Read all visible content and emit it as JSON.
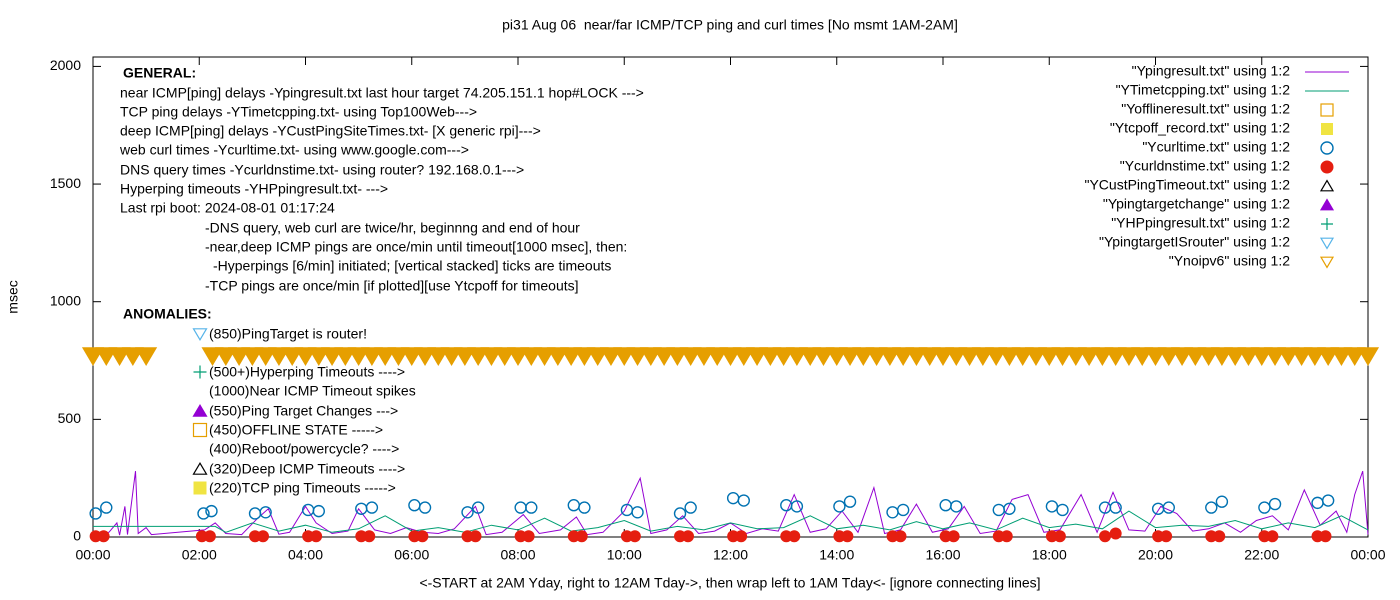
{
  "chart_data": {
    "type": "line",
    "title": "pi31 Aug 06  near/far ICMP/TCP ping and curl times [No msmt 1AM-2AM]",
    "xlabel": "<-START at 2AM Yday, right to 12AM Tday->, then wrap left to 1AM Tday<- [ignore connecting lines]",
    "ylabel": "msec",
    "xlim": [
      0,
      24
    ],
    "ylim": [
      0,
      2040
    ],
    "xticks": [
      {
        "value": 0,
        "label": "00:00"
      },
      {
        "value": 2,
        "label": "02:00"
      },
      {
        "value": 4,
        "label": "04:00"
      },
      {
        "value": 6,
        "label": "06:00"
      },
      {
        "value": 8,
        "label": "08:00"
      },
      {
        "value": 10,
        "label": "10:00"
      },
      {
        "value": 12,
        "label": "12:00"
      },
      {
        "value": 14,
        "label": "14:00"
      },
      {
        "value": 16,
        "label": "16:00"
      },
      {
        "value": 18,
        "label": "18:00"
      },
      {
        "value": 20,
        "label": "20:00"
      },
      {
        "value": 22,
        "label": "22:00"
      },
      {
        "value": 24,
        "label": "00:00"
      }
    ],
    "yticks": [
      0,
      500,
      1000,
      1500,
      2000
    ],
    "legend_position": "top-right",
    "general_title": "GENERAL:",
    "general_notes": [
      "near ICMP[ping] delays -Ypingresult.txt last hour target 74.205.151.1 hop#LOCK --->",
      "TCP ping delays -YTimetcpping.txt- using Top100Web--->",
      "deep ICMP[ping] delays -YCustPingSiteTimes.txt- [X generic rpi]--->",
      "web curl times -Ycurltime.txt- using www.google.com--->",
      "DNS query times -Ycurldnstime.txt- using router? 192.168.0.1--->",
      "Hyperping timeouts -YHPpingresult.txt- --->",
      "Last rpi boot: 2024-08-01 01:17:24",
      "-DNS query, web curl are twice/hr, beginnng and end of hour",
      "-near,deep ICMP pings are once/min until timeout[1000 msec], then:",
      "-Hyperpings [6/min] initiated; [vertical stacked] ticks are timeouts",
      "-TCP pings are once/min [if plotted][use Ytcpoff for timeouts]"
    ],
    "anomalies_title": "ANOMALIES:",
    "anomaly_notes": [
      {
        "text": "(850)PingTarget is router!",
        "marker": "triangle-down-open",
        "color": "#56b4e9"
      },
      {
        "text": "(500+)Hyperping Timeouts ---->",
        "marker": "plus",
        "color": "#009e73"
      },
      {
        "text": "(1000)Near ICMP Timeout spikes"
      },
      {
        "text": "(550)Ping Target Changes --->",
        "marker": "triangle-filled",
        "color": "#9400d3"
      },
      {
        "text": "(450)OFFLINE STATE ----->",
        "marker": "square-open",
        "color": "#e69f00"
      },
      {
        "text": "(400)Reboot/powercycle? ---->"
      },
      {
        "text": "(320)Deep ICMP Timeouts ---->",
        "marker": "triangle-open",
        "color": "#000000"
      },
      {
        "text": "(220)TCP ping Timeouts ----->",
        "marker": "square-filled",
        "color": "#f0e442"
      }
    ],
    "series": [
      {
        "name": "\"Ypingresult.txt\" using 1:2",
        "marker": "line",
        "color": "#9400d3",
        "x": [
          0,
          0.3,
          0.45,
          0.5,
          0.6,
          0.65,
          0.8,
          0.85,
          1.0,
          1.1,
          2.1,
          2.3,
          2.5,
          2.8,
          3.1,
          3.3,
          3.5,
          3.7,
          4.0,
          4.2,
          4.5,
          4.8,
          5.0,
          5.3,
          5.6,
          5.9,
          6.2,
          6.5,
          6.8,
          7.2,
          7.4,
          7.7,
          8.1,
          8.4,
          8.8,
          9.1,
          9.3,
          9.6,
          10.0,
          10.3,
          10.5,
          10.8,
          11.1,
          11.4,
          11.7,
          12.0,
          12.3,
          12.6,
          12.9,
          13.2,
          13.5,
          13.8,
          14.1,
          14.4,
          14.7,
          14.9,
          15.2,
          15.5,
          15.8,
          16.1,
          16.4,
          16.7,
          17.0,
          17.3,
          17.6,
          17.9,
          18.2,
          18.6,
          18.9,
          19.2,
          19.5,
          19.8,
          20.1,
          20.4,
          20.7,
          21.0,
          21.3,
          21.6,
          21.9,
          22.2,
          22.5,
          22.8,
          23.1,
          23.4,
          23.6,
          23.75,
          23.9,
          24.0
        ],
        "values": [
          10,
          20,
          60,
          8,
          130,
          10,
          280,
          15,
          40,
          10,
          30,
          60,
          15,
          10,
          80,
          120,
          12,
          20,
          130,
          60,
          15,
          25,
          120,
          30,
          15,
          40,
          20,
          15,
          35,
          130,
          10,
          20,
          95,
          15,
          30,
          85,
          10,
          20,
          110,
          250,
          15,
          30,
          90,
          15,
          25,
          60,
          15,
          35,
          25,
          180,
          20,
          35,
          110,
          20,
          210,
          15,
          30,
          140,
          20,
          35,
          130,
          15,
          25,
          160,
          180,
          20,
          30,
          180,
          20,
          190,
          30,
          25,
          130,
          100,
          25,
          35,
          60,
          20,
          70,
          90,
          30,
          200,
          50,
          110,
          20,
          180,
          280,
          10
        ]
      },
      {
        "name": "\"YTimetcpping.txt\" using 1:2",
        "marker": "line",
        "color": "#009e73",
        "x": [
          0,
          2.3,
          2.5,
          3,
          3.5,
          4,
          4.5,
          5,
          5.5,
          6,
          6.5,
          7,
          7.5,
          8,
          8.5,
          9,
          9.5,
          10,
          10.5,
          11,
          11.5,
          12,
          12.5,
          13,
          13.5,
          14,
          14.5,
          15,
          15.5,
          16,
          16.5,
          17,
          17.5,
          18,
          18.5,
          19,
          19.5,
          20,
          20.5,
          21,
          21.5,
          22,
          22.5,
          23,
          23.5,
          24
        ],
        "values": [
          45,
          45,
          20,
          60,
          25,
          50,
          20,
          35,
          90,
          25,
          40,
          20,
          50,
          30,
          80,
          25,
          40,
          70,
          25,
          45,
          30,
          60,
          35,
          40,
          90,
          35,
          50,
          30,
          65,
          35,
          60,
          30,
          80,
          40,
          55,
          35,
          110,
          40,
          50,
          45,
          70,
          35,
          60,
          40,
          90,
          30
        ]
      },
      {
        "name": "\"Yofflineresult.txt\" using 1:2",
        "marker": "square-open",
        "color": "#e69f00",
        "x": [],
        "values": []
      },
      {
        "name": "\"Ytcpoff_record.txt\" using 1:2",
        "marker": "square-filled",
        "color": "#f0e442",
        "x": [],
        "values": []
      },
      {
        "name": "\"Ycurltime.txt\" using 1:2",
        "marker": "circle-open",
        "color": "#0072b2",
        "x": [
          0.05,
          0.25,
          2.08,
          2.23,
          3.05,
          3.25,
          4.05,
          4.25,
          5.05,
          5.25,
          6.05,
          6.25,
          7.05,
          7.25,
          8.05,
          8.25,
          9.05,
          9.25,
          10.05,
          10.25,
          11.05,
          11.25,
          12.05,
          12.25,
          13.05,
          13.25,
          14.05,
          14.25,
          15.05,
          15.25,
          16.05,
          16.25,
          17.05,
          17.25,
          18.05,
          18.25,
          19.05,
          19.25,
          20.05,
          20.25,
          21.05,
          21.25,
          22.05,
          22.25,
          23.05,
          23.25
        ],
        "values": [
          100,
          125,
          100,
          110,
          100,
          105,
          115,
          110,
          120,
          125,
          135,
          125,
          105,
          125,
          125,
          125,
          135,
          125,
          115,
          105,
          100,
          125,
          165,
          155,
          135,
          130,
          130,
          150,
          105,
          115,
          135,
          130,
          115,
          120,
          130,
          115,
          125,
          125,
          120,
          125,
          125,
          150,
          125,
          140,
          145,
          155
        ]
      },
      {
        "name": "\"Ycurldnstime.txt\" using 1:2",
        "marker": "circle-filled",
        "color": "#e51e10",
        "x": [
          0.05,
          0.2,
          2.05,
          2.2,
          3.05,
          3.2,
          4.05,
          4.2,
          5.05,
          5.2,
          6.05,
          6.2,
          7.05,
          7.2,
          8.05,
          8.2,
          9.05,
          9.2,
          10.05,
          10.2,
          11.05,
          11.2,
          12.05,
          12.2,
          13.05,
          13.2,
          14.05,
          14.2,
          15.05,
          15.2,
          16.05,
          16.2,
          17.05,
          17.2,
          18.05,
          18.2,
          19.05,
          19.25,
          20.05,
          20.2,
          21.05,
          21.2,
          22.05,
          22.2,
          23.05,
          23.2
        ],
        "values": [
          3,
          3,
          3,
          3,
          3,
          3,
          3,
          3,
          3,
          3,
          3,
          3,
          3,
          3,
          3,
          3,
          3,
          3,
          3,
          3,
          3,
          3,
          3,
          3,
          3,
          3,
          3,
          3,
          3,
          3,
          3,
          3,
          3,
          3,
          3,
          3,
          3,
          15,
          3,
          3,
          3,
          3,
          3,
          3,
          3,
          3
        ]
      },
      {
        "name": "\"YCustPingTimeout.txt\" using 1:2",
        "marker": "triangle-open",
        "color": "#000000",
        "x": [],
        "values": []
      },
      {
        "name": "\"Ypingtargetchange\" using 1:2",
        "marker": "triangle-filled",
        "color": "#9400d3",
        "x": [],
        "values": []
      },
      {
        "name": "\"YHPpingresult.txt\" using 1:2",
        "marker": "plus",
        "color": "#009e73",
        "x": [],
        "values": []
      },
      {
        "name": "\"YpingtargetISrouter\" using 1:2",
        "marker": "triangle-down-open",
        "color": "#56b4e9",
        "x": [],
        "values": []
      },
      {
        "name": "\"Ynoipv6\" using 1:2",
        "marker": "triangle-down-open",
        "color": "#e69f00",
        "x": [
          0,
          0.25,
          0.5,
          0.75,
          1.0,
          2.25,
          2.5,
          2.75,
          3,
          3.25,
          3.5,
          3.75,
          4,
          4.25,
          4.5,
          4.75,
          5,
          5.25,
          5.5,
          5.75,
          6,
          6.25,
          6.5,
          6.75,
          7,
          7.25,
          7.5,
          7.75,
          8,
          8.25,
          8.5,
          8.75,
          9,
          9.25,
          9.5,
          9.75,
          10,
          10.25,
          10.5,
          10.75,
          11,
          11.25,
          11.5,
          11.75,
          12,
          12.25,
          12.5,
          12.75,
          13,
          13.25,
          13.5,
          13.75,
          14,
          14.25,
          14.5,
          14.75,
          15,
          15.25,
          15.5,
          15.75,
          16,
          16.25,
          16.5,
          16.75,
          17,
          17.25,
          17.5,
          17.75,
          18,
          18.25,
          18.5,
          18.75,
          19,
          19.25,
          19.5,
          19.75,
          20,
          20.25,
          20.5,
          20.75,
          21,
          21.25,
          21.5,
          21.75,
          22,
          22.25,
          22.5,
          22.75,
          23,
          23.25,
          23.5,
          23.75,
          24
        ],
        "values": [
          770,
          770,
          770,
          770,
          770,
          770,
          770,
          770,
          770,
          770,
          770,
          770,
          770,
          770,
          770,
          770,
          770,
          770,
          770,
          770,
          770,
          770,
          770,
          770,
          770,
          770,
          770,
          770,
          770,
          770,
          770,
          770,
          770,
          770,
          770,
          770,
          770,
          770,
          770,
          770,
          770,
          770,
          770,
          770,
          770,
          770,
          770,
          770,
          770,
          770,
          770,
          770,
          770,
          770,
          770,
          770,
          770,
          770,
          770,
          770,
          770,
          770,
          770,
          770,
          770,
          770,
          770,
          770,
          770,
          770,
          770,
          770,
          770,
          770,
          770,
          770,
          770,
          770,
          770,
          770,
          770,
          770,
          770,
          770,
          770,
          770,
          770,
          770,
          770,
          770,
          770,
          770,
          770
        ]
      }
    ]
  }
}
